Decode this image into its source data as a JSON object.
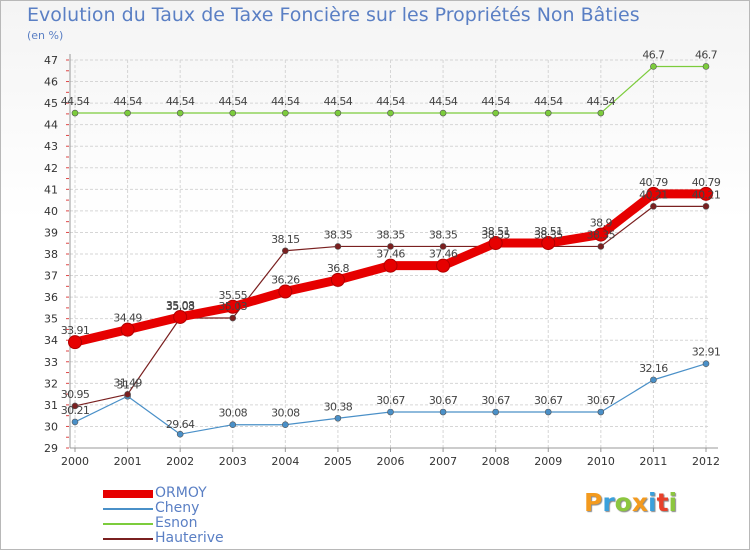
{
  "chart_data": {
    "type": "line",
    "title": "Evolution du Taux de Taxe Foncière sur les Propriétés Non Bâties",
    "ylabel": "(en %)",
    "xlabel": "",
    "ylim": [
      29,
      47
    ],
    "x": [
      "2000",
      "2001",
      "2002",
      "2003",
      "2004",
      "2005",
      "2006",
      "2007",
      "2008",
      "2009",
      "2010",
      "2011",
      "2012"
    ],
    "yticks": [
      "29",
      "30",
      "31",
      "32",
      "33",
      "34",
      "35",
      "36",
      "37",
      "38",
      "39",
      "40",
      "41",
      "42",
      "43",
      "44",
      "45",
      "46",
      "47"
    ],
    "series": [
      {
        "name": "ORMOY",
        "color": "#e60000",
        "values": [
          33.91,
          34.49,
          35.08,
          35.55,
          36.26,
          36.8,
          37.46,
          37.46,
          38.51,
          38.51,
          38.9,
          40.79,
          40.79
        ],
        "labels": [
          "33.91",
          "34.49",
          "35.08",
          "35.55",
          "36.26",
          "36.8",
          "37.46",
          "37.46",
          "38.51",
          "38.51",
          "38.9",
          "40.79",
          "40.79"
        ]
      },
      {
        "name": "Cheny",
        "color": "#4a90c8",
        "values": [
          30.21,
          31.4,
          29.64,
          30.08,
          30.08,
          30.38,
          30.67,
          30.67,
          30.67,
          30.67,
          30.67,
          32.16,
          32.91
        ],
        "labels": [
          "30.21",
          "31.4",
          "29.64",
          "30.08",
          "30.08",
          "30.38",
          "30.67",
          "30.67",
          "30.67",
          "30.67",
          "30.67",
          "32.16",
          "32.91"
        ]
      },
      {
        "name": "Esnon",
        "color": "#7ccc3c",
        "values": [
          44.54,
          44.54,
          44.54,
          44.54,
          44.54,
          44.54,
          44.54,
          44.54,
          44.54,
          44.54,
          44.54,
          46.7,
          46.7
        ],
        "labels": [
          "44.54",
          "44.54",
          "44.54",
          "44.54",
          "44.54",
          "44.54",
          "44.54",
          "44.54",
          "44.54",
          "44.54",
          "44.54",
          "46.7",
          "46.7"
        ]
      },
      {
        "name": "Hauterive",
        "color": "#7a2020",
        "values": [
          30.95,
          31.49,
          35.03,
          35.03,
          38.15,
          38.35,
          38.35,
          38.35,
          38.35,
          38.35,
          38.35,
          40.21,
          40.21
        ],
        "labels": [
          "30.95",
          "31.49",
          "35.03",
          "35.03",
          "38.15",
          "38.35",
          "38.35",
          "38.35",
          "38.35",
          "38.35",
          "38.35",
          "40.21",
          "40.21"
        ]
      }
    ]
  },
  "logo": {
    "letters": [
      {
        "char": "P",
        "color": "#f39a1e"
      },
      {
        "char": "r",
        "color": "#3aa0dc"
      },
      {
        "char": "o",
        "color": "#8cc63f"
      },
      {
        "char": "x",
        "color": "#f39a1e"
      },
      {
        "char": "i",
        "color": "#3aa0dc"
      },
      {
        "char": "t",
        "color": "#e8402a"
      },
      {
        "char": "i",
        "color": "#8cc63f"
      }
    ]
  }
}
